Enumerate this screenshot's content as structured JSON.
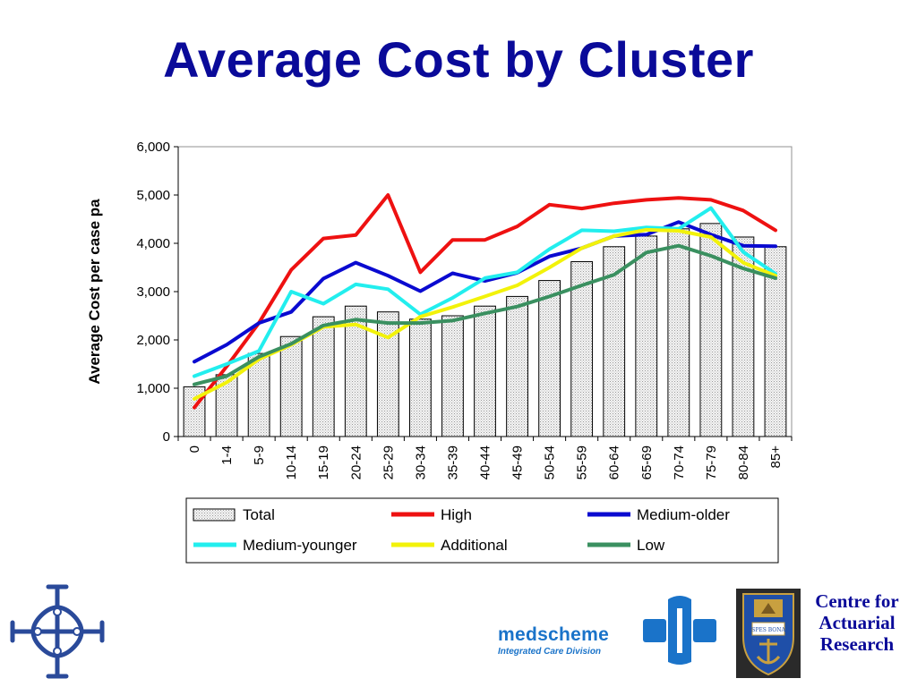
{
  "title": "Average Cost by Cluster",
  "chart_data": {
    "type": "bar",
    "ylabel": "Average Cost per case pa",
    "xlabel": "",
    "ylim": [
      0,
      6000
    ],
    "yticks": [
      0,
      1000,
      2000,
      3000,
      4000,
      5000,
      6000
    ],
    "ytick_labels": [
      "0",
      "1,000",
      "2,000",
      "3,000",
      "4,000",
      "5,000",
      "6,000"
    ],
    "grid": false,
    "legend_position": "bottom",
    "categories": [
      "0",
      "1-4",
      "5-9",
      "10-14",
      "15-19",
      "20-24",
      "25-29",
      "30-34",
      "35-39",
      "40-44",
      "45-49",
      "50-54",
      "55-59",
      "60-64",
      "65-69",
      "70-74",
      "75-79",
      "80-84",
      "85+"
    ],
    "bars": {
      "name": "Total",
      "values": [
        1030,
        1280,
        1720,
        2070,
        2480,
        2700,
        2580,
        2430,
        2500,
        2700,
        2900,
        3230,
        3620,
        3930,
        4150,
        4300,
        4410,
        4130,
        3930
      ]
    },
    "series": [
      {
        "name": "High",
        "color": "#ee1111",
        "values": [
          600,
          1450,
          2350,
          3450,
          4100,
          4170,
          5000,
          3400,
          4070,
          4070,
          4350,
          4800,
          4720,
          4830,
          4900,
          4940,
          4900,
          4680,
          4270
        ]
      },
      {
        "name": "Medium-older",
        "color": "#0a0ad0",
        "values": [
          1550,
          1900,
          2350,
          2580,
          3270,
          3600,
          3330,
          3010,
          3380,
          3220,
          3390,
          3730,
          3900,
          4150,
          4180,
          4440,
          4180,
          3950,
          3940
        ]
      },
      {
        "name": "Medium-younger",
        "color": "#22eeee",
        "values": [
          1250,
          1500,
          1770,
          3000,
          2750,
          3150,
          3050,
          2530,
          2870,
          3280,
          3400,
          3880,
          4270,
          4250,
          4330,
          4300,
          4730,
          3820,
          3370
        ]
      },
      {
        "name": "Additional",
        "color": "#f2f20a",
        "values": [
          780,
          1120,
          1600,
          1900,
          2270,
          2320,
          2050,
          2480,
          2680,
          2900,
          3130,
          3500,
          3900,
          4150,
          4280,
          4260,
          4130,
          3600,
          3330
        ]
      },
      {
        "name": "Low",
        "color": "#3a9060",
        "values": [
          1080,
          1250,
          1650,
          1920,
          2300,
          2420,
          2350,
          2350,
          2400,
          2550,
          2690,
          2900,
          3130,
          3350,
          3810,
          3950,
          3740,
          3480,
          3280
        ]
      }
    ]
  },
  "logos": {
    "left_logo": "cross-emblem-icon",
    "medscheme_icon": "medscheme-mark-icon",
    "medscheme_name": "medscheme",
    "medscheme_tagline": "Integrated Care Division",
    "uct_crest": "university-crest-icon",
    "crest_book_text": "SPES BONA",
    "car_lines": [
      "Centre for",
      "Actuarial",
      "Research"
    ]
  }
}
